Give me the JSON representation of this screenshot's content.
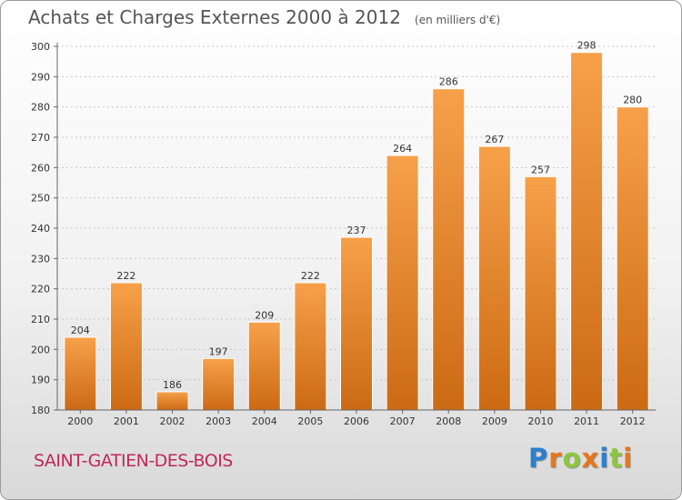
{
  "header": {
    "title": "Achats et Charges Externes 2000 à 2012",
    "subtitle": "(en milliers d'€)"
  },
  "footer": {
    "place": "SAINT-GATIEN-DES-BOIS",
    "logo": [
      "P",
      "r",
      "o",
      "x",
      "i",
      "t",
      "i"
    ],
    "logo_colors": [
      "#2a7fd0",
      "#e8761a",
      "#8cc63f",
      "#e8761a",
      "#2a7fd0",
      "#8cc63f",
      "#e8761a"
    ]
  },
  "chart_data": {
    "type": "bar",
    "title": "Achats et Charges Externes 2000 à 2012",
    "subtitle": "(en milliers d'€)",
    "categories": [
      "2000",
      "2001",
      "2002",
      "2003",
      "2004",
      "2005",
      "2006",
      "2007",
      "2008",
      "2009",
      "2010",
      "2011",
      "2012"
    ],
    "values": [
      204,
      222,
      186,
      197,
      209,
      222,
      237,
      264,
      286,
      267,
      257,
      298,
      280
    ],
    "ylim": [
      180,
      300
    ],
    "yticks": [
      180,
      190,
      200,
      210,
      220,
      230,
      240,
      250,
      260,
      270,
      280,
      290,
      300
    ],
    "grid": true,
    "bar_color_top": "#f7a04a",
    "bar_color_bottom": "#cc6a14"
  }
}
